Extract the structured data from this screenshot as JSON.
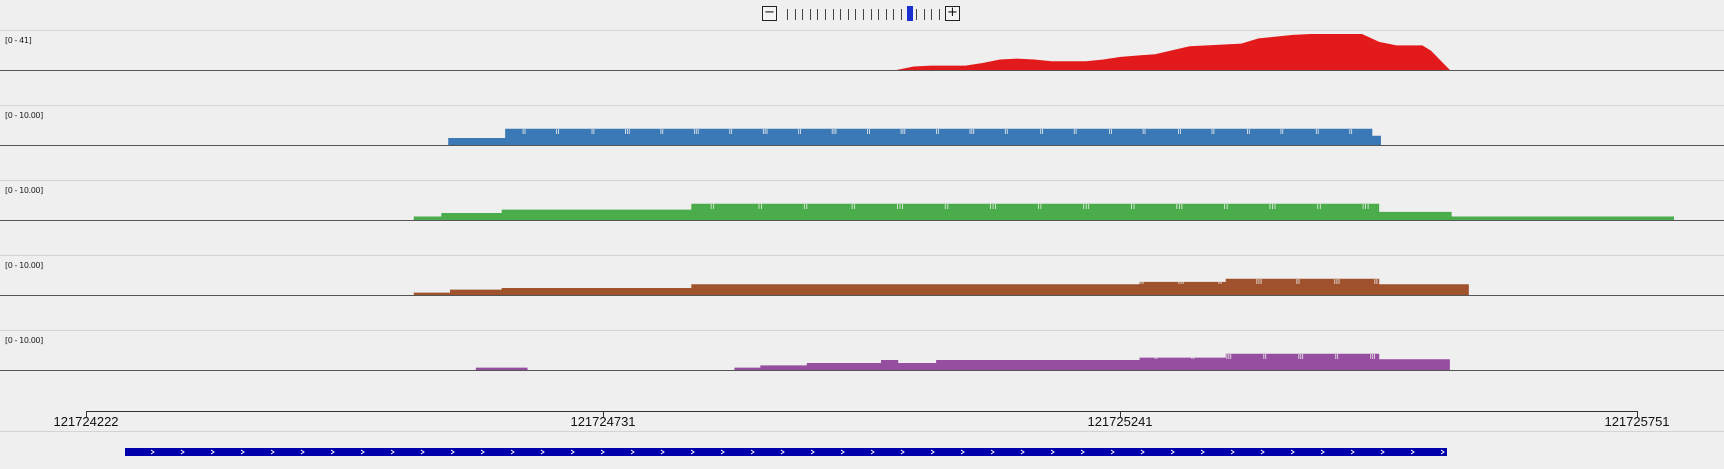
{
  "zoom": {
    "out_label": "−",
    "in_label": "+",
    "levels": 23,
    "current_level": 16
  },
  "tracks": [
    {
      "id": "track-1",
      "range_label": "[0 - 41]",
      "color": "#e31a1c",
      "max": 41,
      "profile": [
        [
          0.52,
          0
        ],
        [
          0.53,
          4
        ],
        [
          0.54,
          5
        ],
        [
          0.56,
          5
        ],
        [
          0.57,
          8
        ],
        [
          0.58,
          12
        ],
        [
          0.59,
          13
        ],
        [
          0.6,
          12
        ],
        [
          0.61,
          10
        ],
        [
          0.63,
          10
        ],
        [
          0.64,
          12
        ],
        [
          0.65,
          15
        ],
        [
          0.67,
          18
        ],
        [
          0.69,
          27
        ],
        [
          0.7,
          28
        ],
        [
          0.72,
          30
        ],
        [
          0.73,
          36
        ],
        [
          0.74,
          38
        ],
        [
          0.75,
          40
        ],
        [
          0.76,
          41
        ],
        [
          0.79,
          41
        ],
        [
          0.8,
          32
        ],
        [
          0.81,
          28
        ],
        [
          0.825,
          28
        ],
        [
          0.83,
          22
        ],
        [
          0.84,
          2
        ],
        [
          0.841,
          0
        ]
      ]
    },
    {
      "id": "track-2",
      "range_label": "[0 - 10.00]",
      "color": "#3a78b6",
      "max": 10,
      "profile": [
        [
          0.258,
          0
        ],
        [
          0.26,
          3
        ],
        [
          0.292,
          3
        ],
        [
          0.293,
          7
        ],
        [
          0.795,
          7
        ],
        [
          0.796,
          4
        ],
        [
          0.8,
          4
        ],
        [
          0.801,
          0
        ]
      ]
    },
    {
      "id": "track-3",
      "range_label": "[0 - 10.00]",
      "color": "#4aac4a",
      "max": 10,
      "profile": [
        [
          0.238,
          0
        ],
        [
          0.24,
          3
        ],
        [
          0.255,
          3
        ],
        [
          0.256,
          6
        ],
        [
          0.29,
          6
        ],
        [
          0.291,
          9
        ],
        [
          0.4,
          9
        ],
        [
          0.401,
          14
        ],
        [
          0.795,
          14
        ],
        [
          0.8,
          7
        ],
        [
          0.84,
          7
        ],
        [
          0.842,
          3
        ],
        [
          0.97,
          3
        ],
        [
          0.971,
          0
        ]
      ]
    },
    {
      "id": "track-4",
      "range_label": "[0 - 10.00]",
      "color": "#a0522d",
      "max": 10,
      "profile": [
        [
          0.238,
          0
        ],
        [
          0.24,
          3
        ],
        [
          0.26,
          3
        ],
        [
          0.261,
          7
        ],
        [
          0.29,
          7
        ],
        [
          0.291,
          9
        ],
        [
          0.4,
          9
        ],
        [
          0.401,
          14
        ],
        [
          0.66,
          14
        ],
        [
          0.661,
          17
        ],
        [
          0.71,
          17
        ],
        [
          0.711,
          21
        ],
        [
          0.795,
          21
        ],
        [
          0.8,
          14
        ],
        [
          0.84,
          14
        ],
        [
          0.851,
          14
        ],
        [
          0.852,
          0
        ]
      ]
    },
    {
      "id": "track-5",
      "range_label": "[0 - 10.00]",
      "color": "#964ea0",
      "max": 10,
      "profile": [
        [
          0.275,
          0
        ],
        [
          0.276,
          3
        ],
        [
          0.305,
          3
        ],
        [
          0.306,
          0
        ],
        [
          0.425,
          0
        ],
        [
          0.426,
          3
        ],
        [
          0.44,
          3
        ],
        [
          0.441,
          6
        ],
        [
          0.467,
          6
        ],
        [
          0.468,
          9
        ],
        [
          0.51,
          9
        ],
        [
          0.511,
          13
        ],
        [
          0.52,
          13
        ],
        [
          0.521,
          9
        ],
        [
          0.542,
          9
        ],
        [
          0.543,
          13
        ],
        [
          0.615,
          13
        ],
        [
          0.616,
          13
        ],
        [
          0.66,
          13
        ],
        [
          0.661,
          16
        ],
        [
          0.71,
          16
        ],
        [
          0.711,
          21
        ],
        [
          0.795,
          21
        ],
        [
          0.8,
          14
        ],
        [
          0.84,
          14
        ],
        [
          0.841,
          0
        ]
      ]
    }
  ],
  "ruler": {
    "labels": [
      "121724222",
      "121724731",
      "121725241",
      "121725751"
    ]
  },
  "gene": {
    "color": "#0000aa",
    "strand": "+"
  }
}
